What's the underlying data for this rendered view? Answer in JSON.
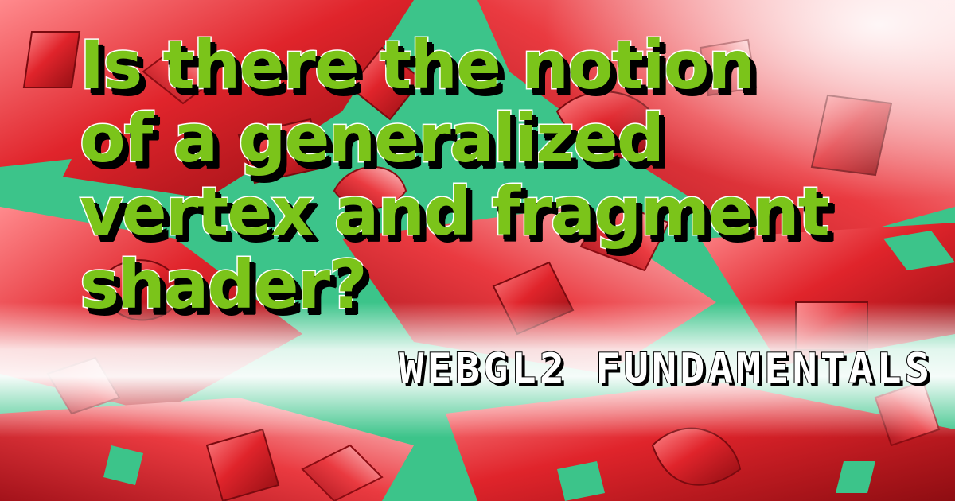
{
  "title": {
    "lines": [
      "Is there the notion",
      "of a generalized",
      "vertex and fragment",
      "shader?"
    ]
  },
  "brand": {
    "label": "WEBGL2 FUNDAMENTALS"
  },
  "colors": {
    "title_fill": "#7bc41a",
    "title_outline": "#ffffff",
    "title_shadow": "#000000",
    "background_teal": "#3cc48a",
    "background_red": "#e0242b",
    "background_pink": "#f7a0a3",
    "highlight_white": "#ffffff"
  },
  "background": {
    "icon": "abstract-3d-letters-pattern"
  }
}
